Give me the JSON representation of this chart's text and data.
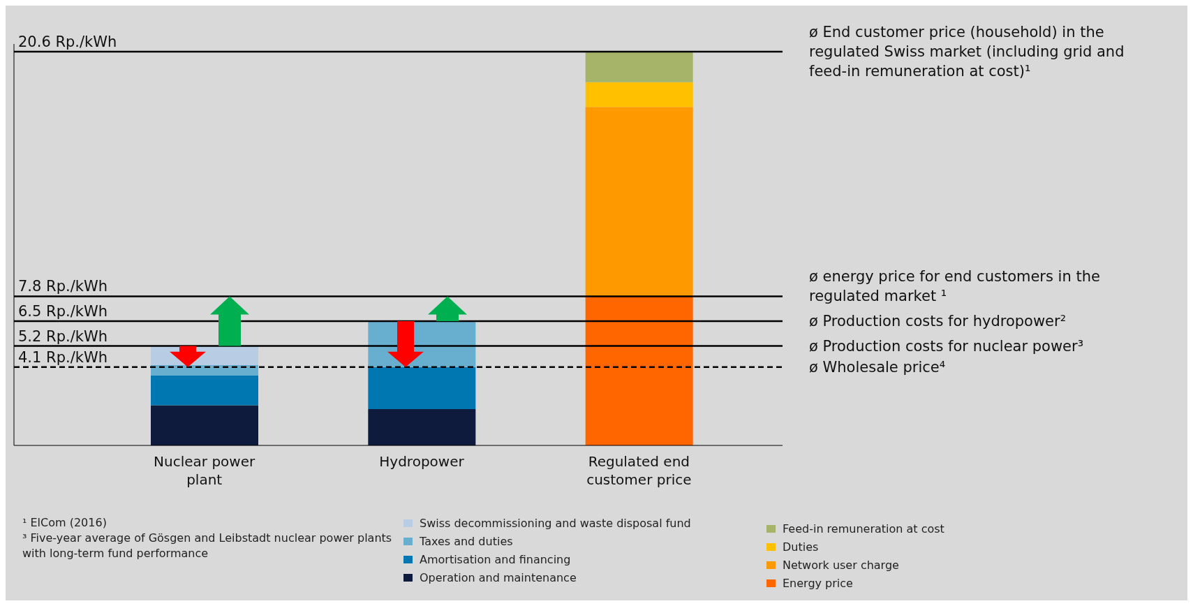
{
  "chart_data": {
    "type": "bar",
    "stacked": true,
    "categories": [
      "Nuclear power plant",
      "Hydropower",
      "Regulated end customer price"
    ],
    "series": [
      {
        "name": "Operation and maintenance",
        "color": "#0f1b3c",
        "values": [
          2.1,
          1.9,
          null
        ]
      },
      {
        "name": "Amortisation and financing",
        "color": "#0077b0",
        "values": [
          1.55,
          2.2,
          null
        ]
      },
      {
        "name": "Taxes and duties",
        "color": "#68aecf",
        "values": [
          0.55,
          2.4,
          null
        ]
      },
      {
        "name": "Swiss decommissioning and waste disposal fund",
        "color": "#b8cce4",
        "values": [
          1.0,
          null,
          null
        ]
      },
      {
        "name": "Energy price",
        "color": "#ff6600",
        "values": [
          null,
          null,
          7.8
        ]
      },
      {
        "name": "Network user charge",
        "color": "#ff9900",
        "values": [
          null,
          null,
          9.9
        ]
      },
      {
        "name": "Duties",
        "color": "#ffc000",
        "values": [
          null,
          null,
          1.3
        ]
      },
      {
        "name": "Feed-in remuneration at cost",
        "color": "#a6b46a",
        "values": [
          null,
          null,
          1.6
        ]
      }
    ],
    "ylim": [
      0,
      21
    ],
    "yticks": [
      {
        "value": 4.1,
        "label": "4.1 Rp./kWh"
      },
      {
        "value": 5.2,
        "label": "5.2 Rp./kWh"
      },
      {
        "value": 6.5,
        "label": "6.5 Rp./kWh"
      },
      {
        "value": 7.8,
        "label": "7.8 Rp./kWh"
      },
      {
        "value": 20.6,
        "label": "20.6 Rp./kWh"
      }
    ],
    "ref_lines": [
      {
        "axis": "y",
        "value": 20.6,
        "label": "ø End customer price (household) in the regulated Swiss market (including grid and feed-in remuneration at cost)¹",
        "color": "#000000",
        "line_style": "solid"
      },
      {
        "axis": "y",
        "value": 7.8,
        "label": "ø energy price for end customers in the regulated market ¹",
        "color": "#000000",
        "line_style": "solid"
      },
      {
        "axis": "y",
        "value": 6.5,
        "label": "ø Production costs for hydropower²",
        "color": "#000000",
        "line_style": "solid"
      },
      {
        "axis": "y",
        "value": 5.2,
        "label": "ø Production costs for nuclear power³",
        "color": "#000000",
        "line_style": "solid"
      },
      {
        "axis": "y",
        "value": 4.1,
        "label": "ø Wholesale price⁴",
        "color": "#000000",
        "line_style": "dashed"
      }
    ],
    "annotations": [
      "¹ ElCom (2016)",
      "³ Five-year average of Gösgen and Leibstadt nuclear power plants with long-term fund performance"
    ],
    "legend": "bottom",
    "grid": false
  }
}
